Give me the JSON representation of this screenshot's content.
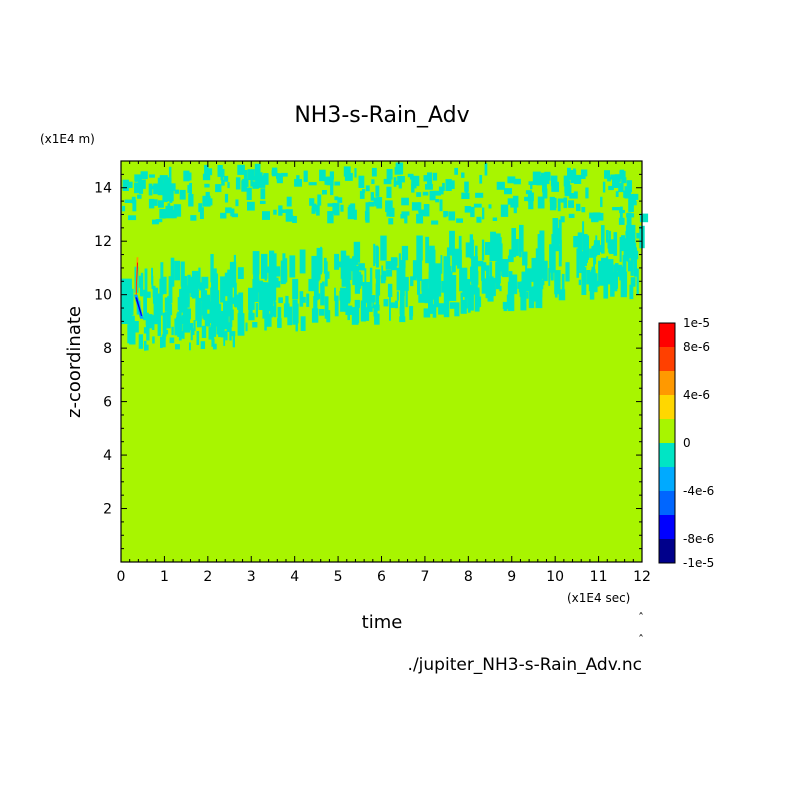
{
  "page": {
    "title": "NH3-s-Rain_Adv",
    "source_label": "./jupiter_NH3-s-Rain_Adv.nc"
  },
  "chart_data": {
    "type": "heatmap",
    "title": "NH3-s-Rain_Adv",
    "xlabel": "time",
    "ylabel": "z-coordinate",
    "x_unit": "(x1E4 sec)",
    "y_unit": "(x1E4 m)",
    "xlim": [
      0,
      12
    ],
    "ylim": [
      0,
      15
    ],
    "x_ticks": [
      "0",
      "1",
      "2",
      "3",
      "4",
      "5",
      "6",
      "7",
      "8",
      "9",
      "10",
      "11",
      "12"
    ],
    "y_ticks": [
      "2",
      "4",
      "6",
      "8",
      "10",
      "12",
      "14"
    ],
    "colorbar": {
      "levels": [
        -1e-05,
        -8e-06,
        -6e-06,
        -4e-06,
        -2e-06,
        0,
        2e-06,
        4e-06,
        6e-06,
        8e-06,
        1e-05
      ],
      "colors": [
        "#00008b",
        "#0000ff",
        "#0066ff",
        "#00aaff",
        "#00e5c5",
        "#a8f500",
        "#ffd700",
        "#ff9900",
        "#ff4000",
        "#ff0000"
      ],
      "tick_labels": [
        "1e-5",
        "8e-6",
        "4e-6",
        "0",
        "-4e-6",
        "-8e-6",
        "-1e-5"
      ]
    },
    "background_value": 0,
    "regions": [
      {
        "description_value": -1.5e-06,
        "x_range": [
          0,
          12
        ],
        "z_range": [
          8.0,
          12.2
        ]
      },
      {
        "description_value": -1.5e-06,
        "x_range": [
          0,
          12
        ],
        "z_range": [
          12.6,
          14.6
        ]
      },
      {
        "description_value": 1e-05,
        "x_range": [
          0.3,
          0.45
        ],
        "z_range": [
          10.0,
          11.4
        ]
      },
      {
        "description_value": -1e-05,
        "x_range": [
          0.3,
          0.5
        ],
        "z_range": [
          9.0,
          10.0
        ]
      }
    ]
  }
}
